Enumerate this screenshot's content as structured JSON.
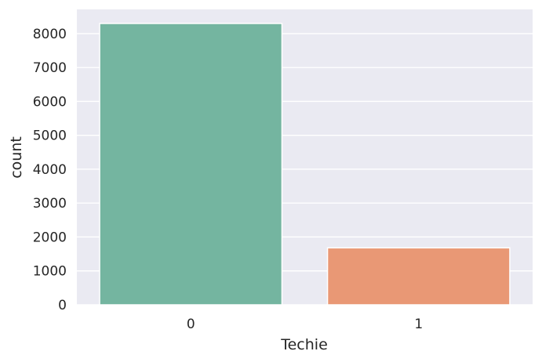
{
  "chart_data": {
    "type": "bar",
    "title": "",
    "xlabel": "Techie",
    "ylabel": "count",
    "categories": [
      "0",
      "1"
    ],
    "values": [
      8300,
      1680
    ],
    "ylim": [
      0,
      8715
    ],
    "yticks": [
      0,
      1000,
      2000,
      3000,
      4000,
      5000,
      6000,
      7000,
      8000
    ],
    "ytick_labels": [
      "0",
      "1000",
      "2000",
      "3000",
      "4000",
      "5000",
      "6000",
      "7000",
      "8000"
    ],
    "grid": true,
    "colors": [
      "#74b5a0",
      "#e99875"
    ],
    "background_color": "#eaeaf2",
    "grid_color": "#ffffff"
  }
}
